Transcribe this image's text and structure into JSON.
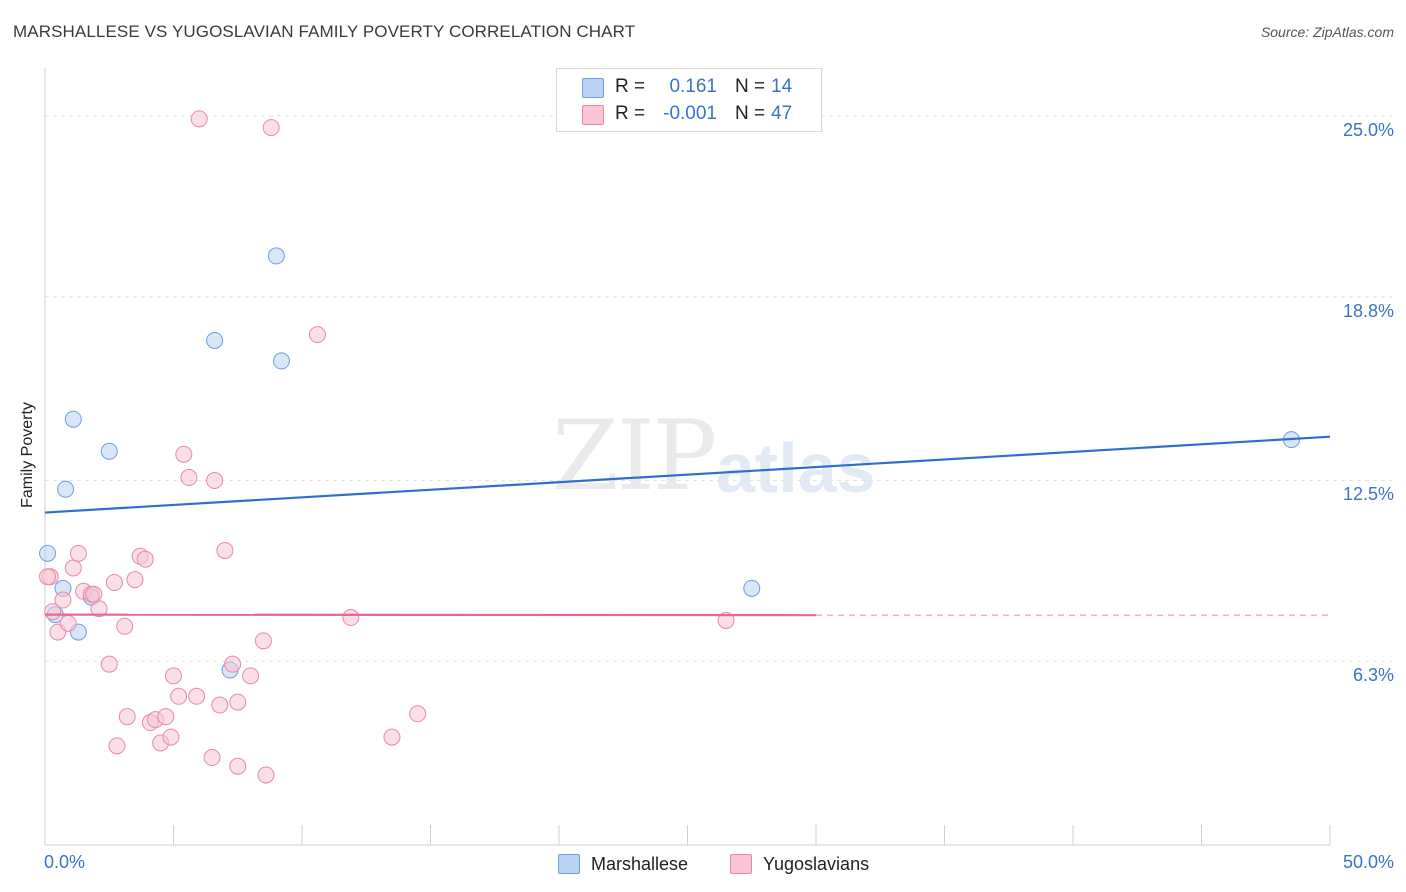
{
  "title": "MARSHALLESE VS YUGOSLAVIAN FAMILY POVERTY CORRELATION CHART",
  "source": "Source: ZipAtlas.com",
  "watermark": {
    "zip": "ZIP",
    "atlas": "atlas"
  },
  "legend_top": {
    "rows": [
      {
        "r_label": "R =",
        "r_value": "0.161",
        "n_label": "N =",
        "n_value": "14"
      },
      {
        "r_label": "R =",
        "r_value": "-0.001",
        "n_label": "N =",
        "n_value": "47"
      }
    ]
  },
  "legend_bottom": {
    "items": [
      "Marshallese",
      "Yugoslavians"
    ]
  },
  "colors": {
    "blue_fill": "#b8d2f2",
    "blue_stroke": "#6f9fdd",
    "blue_line": "#2f6fcc",
    "pink_fill": "#f8c4d6",
    "pink_stroke": "#e889aa",
    "pink_line": "#e8668f",
    "tick_text": "#3b73c8",
    "grid": "#e3e3e3"
  },
  "chart_data": {
    "type": "scatter",
    "title": "MARSHALLESE VS YUGOSLAVIAN FAMILY POVERTY CORRELATION CHART",
    "xlabel": "",
    "ylabel": "Family Poverty",
    "xlim": [
      0,
      50
    ],
    "ylim": [
      0,
      26.3
    ],
    "x_tick_labels": [
      "0.0%",
      "50.0%"
    ],
    "y_ticks": [
      6.3,
      12.5,
      18.8,
      25.0
    ],
    "y_tick_labels": [
      "6.3%",
      "12.5%",
      "18.8%",
      "25.0%"
    ],
    "grid": true,
    "series": [
      {
        "name": "Marshallese",
        "color": "blue",
        "points": [
          [
            0.1,
            10.0
          ],
          [
            0.4,
            7.9
          ],
          [
            0.7,
            8.8
          ],
          [
            0.8,
            12.2
          ],
          [
            1.1,
            14.6
          ],
          [
            1.3,
            7.3
          ],
          [
            1.8,
            8.5
          ],
          [
            2.5,
            13.5
          ],
          [
            6.6,
            17.3
          ],
          [
            7.2,
            6.0
          ],
          [
            9.0,
            20.2
          ],
          [
            9.2,
            16.6
          ],
          [
            27.5,
            8.8
          ],
          [
            48.5,
            13.9
          ]
        ],
        "trend": {
          "x1": 0,
          "y1": 11.4,
          "x2": 50,
          "y2": 14.0
        }
      },
      {
        "name": "Yugoslavians",
        "color": "pink",
        "points": [
          [
            0.2,
            9.2
          ],
          [
            0.3,
            8.0
          ],
          [
            0.5,
            7.3
          ],
          [
            0.7,
            8.4
          ],
          [
            0.9,
            7.6
          ],
          [
            1.1,
            9.5
          ],
          [
            1.3,
            10.0
          ],
          [
            1.5,
            8.7
          ],
          [
            1.8,
            8.6
          ],
          [
            2.1,
            8.1
          ],
          [
            2.5,
            6.2
          ],
          [
            2.7,
            9.0
          ],
          [
            2.8,
            3.4
          ],
          [
            3.1,
            7.5
          ],
          [
            3.2,
            4.4
          ],
          [
            3.5,
            9.1
          ],
          [
            3.7,
            9.9
          ],
          [
            3.9,
            9.8
          ],
          [
            4.1,
            4.2
          ],
          [
            4.3,
            4.3
          ],
          [
            4.5,
            3.5
          ],
          [
            4.7,
            4.4
          ],
          [
            4.9,
            3.7
          ],
          [
            5.0,
            5.8
          ],
          [
            5.2,
            5.1
          ],
          [
            5.4,
            13.4
          ],
          [
            5.6,
            12.6
          ],
          [
            5.9,
            5.1
          ],
          [
            6.0,
            24.9
          ],
          [
            6.5,
            3.0
          ],
          [
            6.6,
            12.5
          ],
          [
            6.8,
            4.8
          ],
          [
            7.0,
            10.1
          ],
          [
            7.3,
            6.2
          ],
          [
            7.5,
            4.9
          ],
          [
            7.5,
            2.7
          ],
          [
            8.0,
            5.8
          ],
          [
            8.5,
            7.0
          ],
          [
            8.6,
            2.4
          ],
          [
            8.8,
            24.6
          ],
          [
            10.6,
            17.5
          ],
          [
            11.9,
            7.8
          ],
          [
            13.5,
            3.7
          ],
          [
            14.5,
            4.5
          ],
          [
            26.5,
            7.7
          ],
          [
            0.1,
            9.2
          ],
          [
            1.9,
            8.6
          ]
        ],
        "trend": {
          "x1": 0,
          "y1": 7.9,
          "x2": 30,
          "y2": 7.88,
          "dashed_to": 50
        }
      }
    ]
  }
}
